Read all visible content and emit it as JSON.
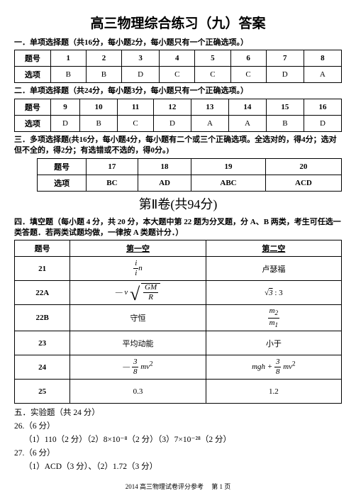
{
  "doc_title": "高三物理综合练习（九）答案",
  "sections": {
    "s1": "一．单项选择题（共16分，每小题2分，每小题只有一个正确选项。）",
    "s2": "二．单项选择题（共24分，每小题3分，每小题只有一个正确选项。）",
    "s3": "三．多项选择题(共16分，每小题4分，每小题有二个或三个正确选项。全选对的，得4分；选对但不全的，得2分；有选错或不选的，得0分。)",
    "s4": "四．填空题（每小题 4 分，共 20 分，本大题中第 22 题为分叉题，分 A、B 两类，考生可任选一类答题．若两类试题均做，一律按 A 类题计分．）",
    "s5": "五．实验题（共 24 分）"
  },
  "part2_title": "第Ⅱ卷(共94分)",
  "table1": {
    "row_label": "题号",
    "ans_label": "选项",
    "nums": [
      "1",
      "2",
      "3",
      "4",
      "5",
      "6",
      "7",
      "8"
    ],
    "ans": [
      "B",
      "B",
      "D",
      "C",
      "C",
      "C",
      "D",
      "A"
    ]
  },
  "table2": {
    "row_label": "题号",
    "ans_label": "选项",
    "nums": [
      "9",
      "10",
      "11",
      "12",
      "13",
      "14",
      "15",
      "16"
    ],
    "ans": [
      "D",
      "B",
      "C",
      "D",
      "A",
      "A",
      "B",
      "D"
    ]
  },
  "table3": {
    "row_label": "题号",
    "ans_label": "选项",
    "nums": [
      "17",
      "18",
      "19",
      "20"
    ],
    "ans": [
      "BC",
      "AD",
      "ABC",
      "ACD"
    ]
  },
  "fill_table": {
    "headers": [
      "题号",
      "第一空",
      "第二空"
    ],
    "rows": [
      {
        "n": "21",
        "c1_html": "<span class='formula'><span class='frac'><span class='num'>i</span><span class='den'>i</span></span>n</span>",
        "c2_html": "卢瑟福"
      },
      {
        "n": "22A",
        "c1_html": "<span class='formula'>— v </span><span class='sqrt-wrap'><span class='sqrt-sym'>√</span><span class='sqrt-bar'><span class='radicand'><span class='frac'><span class='num formula'>GM</span><span class='den formula'>R</span></span></span></span></span>",
        "c2_html": "<span class='formula'><span class='sqrt-simple'></span><span class='over'>3</span></span> : 3"
      },
      {
        "n": "22B",
        "c1_html": "守恒",
        "c2_html": "<span class='formula'><span class='frac'><span class='num'>m<sub>2</sub></span><span class='den'>m<sub>1</sub></span></span></span>"
      },
      {
        "n": "23",
        "c1_html": "平均动能",
        "c2_html": "小于"
      },
      {
        "n": "24",
        "c1_html": "<span class='formula'>— <span class='frac'><span class='num'>3</span><span class='den'>8</span></span> mv</span><sup>2</sup>",
        "c2_html": "<span class='formula'>mgh + <span class='frac'><span class='num'>3</span><span class='den'>8</span></span> mv</span><sup>2</sup>"
      },
      {
        "n": "25",
        "c1_html": "0.3",
        "c2_html": "1.2"
      }
    ]
  },
  "exp": {
    "l26": "26.（6 分）",
    "l26a": "（1）110（2 分）（2）8×10⁻⁸（2 分）（3）7×10⁻²⁸（2 分）",
    "l27": "27.（6 分）",
    "l27a": "（1）ACD（3 分）、（2）1.72（3 分）"
  },
  "footer": "2014 高三物理试卷评分参考　  第 1 页"
}
